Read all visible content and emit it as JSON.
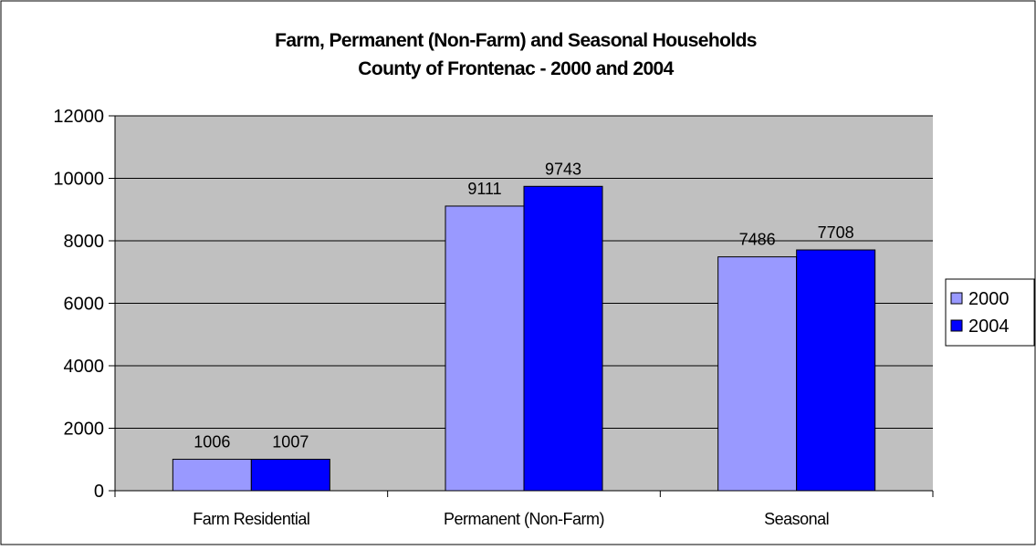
{
  "chart_data": {
    "type": "bar",
    "title": "Farm, Permanent (Non-Farm) and Seasonal Households",
    "subtitle": "County of Frontenac - 2000 and 2004",
    "categories": [
      "Farm Residential",
      "Permanent (Non-Farm)",
      "Seasonal"
    ],
    "series": [
      {
        "name": "2000",
        "values": [
          1006,
          9111,
          7486
        ],
        "color": "#9999ff"
      },
      {
        "name": "2004",
        "values": [
          1007,
          9743,
          7708
        ],
        "color": "#0000ff"
      }
    ],
    "y_ticks": [
      "0",
      "2000",
      "4000",
      "6000",
      "8000",
      "10000",
      "12000"
    ],
    "ylim": [
      0,
      12000
    ],
    "grid": true,
    "plot_background": "#c0c0c0",
    "legend_position": "right"
  }
}
